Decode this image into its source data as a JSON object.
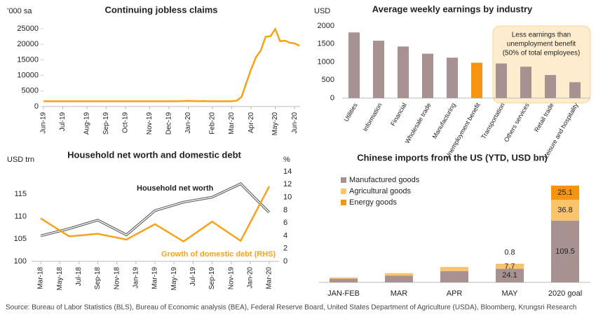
{
  "chart_data": [
    {
      "type": "line",
      "title": "Continuing jobless claims",
      "y_label": "’000 sa",
      "categories": [
        "Jun-19",
        null,
        null,
        null,
        "Jul-19",
        null,
        null,
        null,
        null,
        "Aug-19",
        null,
        null,
        null,
        "Sep-19",
        null,
        null,
        null,
        "Oct-19",
        null,
        null,
        null,
        null,
        "Nov-19",
        null,
        null,
        null,
        "Dec-19",
        null,
        null,
        null,
        "Jan-20",
        null,
        null,
        null,
        null,
        "Feb-20",
        null,
        null,
        null,
        "Mar-20",
        null,
        null,
        null,
        "Apr-20",
        null,
        null,
        null,
        null,
        "May-20",
        null,
        null,
        null,
        "Jun-20",
        null
      ],
      "values": [
        1700,
        1700,
        1700,
        1700,
        1700,
        1700,
        1700,
        1700,
        1700,
        1700,
        1700,
        1700,
        1700,
        1700,
        1700,
        1700,
        1700,
        1700,
        1700,
        1700,
        1700,
        1700,
        1700,
        1700,
        1700,
        1700,
        1700,
        1700,
        1700,
        1750,
        1800,
        1750,
        1700,
        1750,
        1700,
        1700,
        1700,
        1700,
        1700,
        1700,
        1900,
        3000,
        7500,
        12000,
        15800,
        18000,
        22400,
        22600,
        24900,
        21000,
        21200,
        20500,
        20300,
        19500
      ],
      "color": "#f5a31b",
      "ylim": [
        0,
        25000
      ],
      "yticks": [
        0,
        5000,
        10000,
        15000,
        20000,
        25000
      ]
    },
    {
      "type": "bar",
      "title": "Average weekly earnings by industry",
      "y_label": "USD",
      "categories": [
        "Utilities",
        "Information",
        "Financial",
        "Wholesale trade",
        "Manufacturing",
        "Unemployment benefit",
        "Transportation",
        "Others services",
        "Retail trade",
        "Leisure and hospitality"
      ],
      "values": [
        1820,
        1590,
        1430,
        1230,
        1120,
        980,
        960,
        870,
        640,
        440
      ],
      "colors": [
        "#a89191",
        "#a89191",
        "#a89191",
        "#a89191",
        "#a89191",
        "#f5950f",
        "#a89191",
        "#a89191",
        "#a89191",
        "#a89191"
      ],
      "ylim": [
        0,
        2000
      ],
      "yticks": [
        0,
        500,
        1000,
        1500,
        2000
      ],
      "annotation": [
        "Less earnings than",
        "unemployment benefit",
        "(50% of total employees)"
      ]
    },
    {
      "type": "dual_line",
      "title": "Household net worth and domestic debt",
      "y_label": "USD trn",
      "y2_label": "%",
      "xticks": [
        "Mar-18",
        "May-18",
        "Jul-18",
        "Sep-18",
        "Nov-18",
        "Jan-19",
        "Mar-19",
        "May-19",
        "Jul-19",
        "Sep-19",
        "Nov-19",
        "Jan-20",
        "Mar-20"
      ],
      "series": [
        {
          "name": "Household net worth",
          "color": "#555555",
          "x": [
            "Mar-18",
            "Jun-18",
            "Sep-18",
            "Dec-18",
            "Mar-19",
            "Jun-19",
            "Sep-19",
            "Dec-19",
            "Mar-20"
          ],
          "values": [
            105.7,
            107.3,
            109.2,
            105.9,
            111.3,
            113.2,
            114.3,
            117.3,
            110.9
          ]
        },
        {
          "name": "Growth of domestic debt (RHS)",
          "color": "#f5a31b",
          "axis": "y2",
          "x": [
            "Mar-18",
            "Jun-18",
            "Sep-18",
            "Dec-18",
            "Mar-19",
            "Jun-19",
            "Sep-19",
            "Dec-19",
            "Mar-20"
          ],
          "values": [
            6.7,
            3.9,
            4.3,
            3.4,
            5.8,
            3.1,
            6.2,
            3.2,
            11.7
          ]
        }
      ],
      "ylim": [
        100,
        120
      ],
      "yticks": [
        100,
        105,
        110,
        115
      ],
      "y2lim": [
        0,
        14
      ],
      "y2ticks": [
        0,
        2,
        4,
        6,
        8,
        10,
        12,
        14
      ]
    },
    {
      "type": "stacked_bar",
      "title": "Chinese imports from the US (YTD, USD bn)",
      "categories": [
        "JAN-FEB",
        "MAR",
        "APR",
        "MAY",
        "2020 goal"
      ],
      "series": [
        {
          "name": "Manufactured goods",
          "color": "#a89191",
          "values": [
            6.5,
            12,
            20,
            24.1,
            109.5
          ],
          "value_labels": [
            null,
            null,
            null,
            "24.1",
            "109.5"
          ]
        },
        {
          "name": "Agricultural goods",
          "color": "#f9c46c",
          "values": [
            2.0,
            4.0,
            6.5,
            7.7,
            36.8
          ],
          "value_labels": [
            null,
            null,
            null,
            "7.7",
            "36.8"
          ]
        },
        {
          "name": "Energy goods",
          "color": "#f5950f",
          "values": [
            0.2,
            0.3,
            0.5,
            0.8,
            25.1
          ],
          "value_labels": [
            null,
            null,
            null,
            "0.8",
            "25.1"
          ]
        }
      ],
      "ylim": [
        0,
        175
      ],
      "legend": "top-left"
    }
  ],
  "source": "Source: Bureau of Labor Statistics (BLS), Bureau of Economic analysis (BEA), Federal Reserve Board, United States Department of Agriculture (USDA), Bloomberg, Krungsri Research"
}
